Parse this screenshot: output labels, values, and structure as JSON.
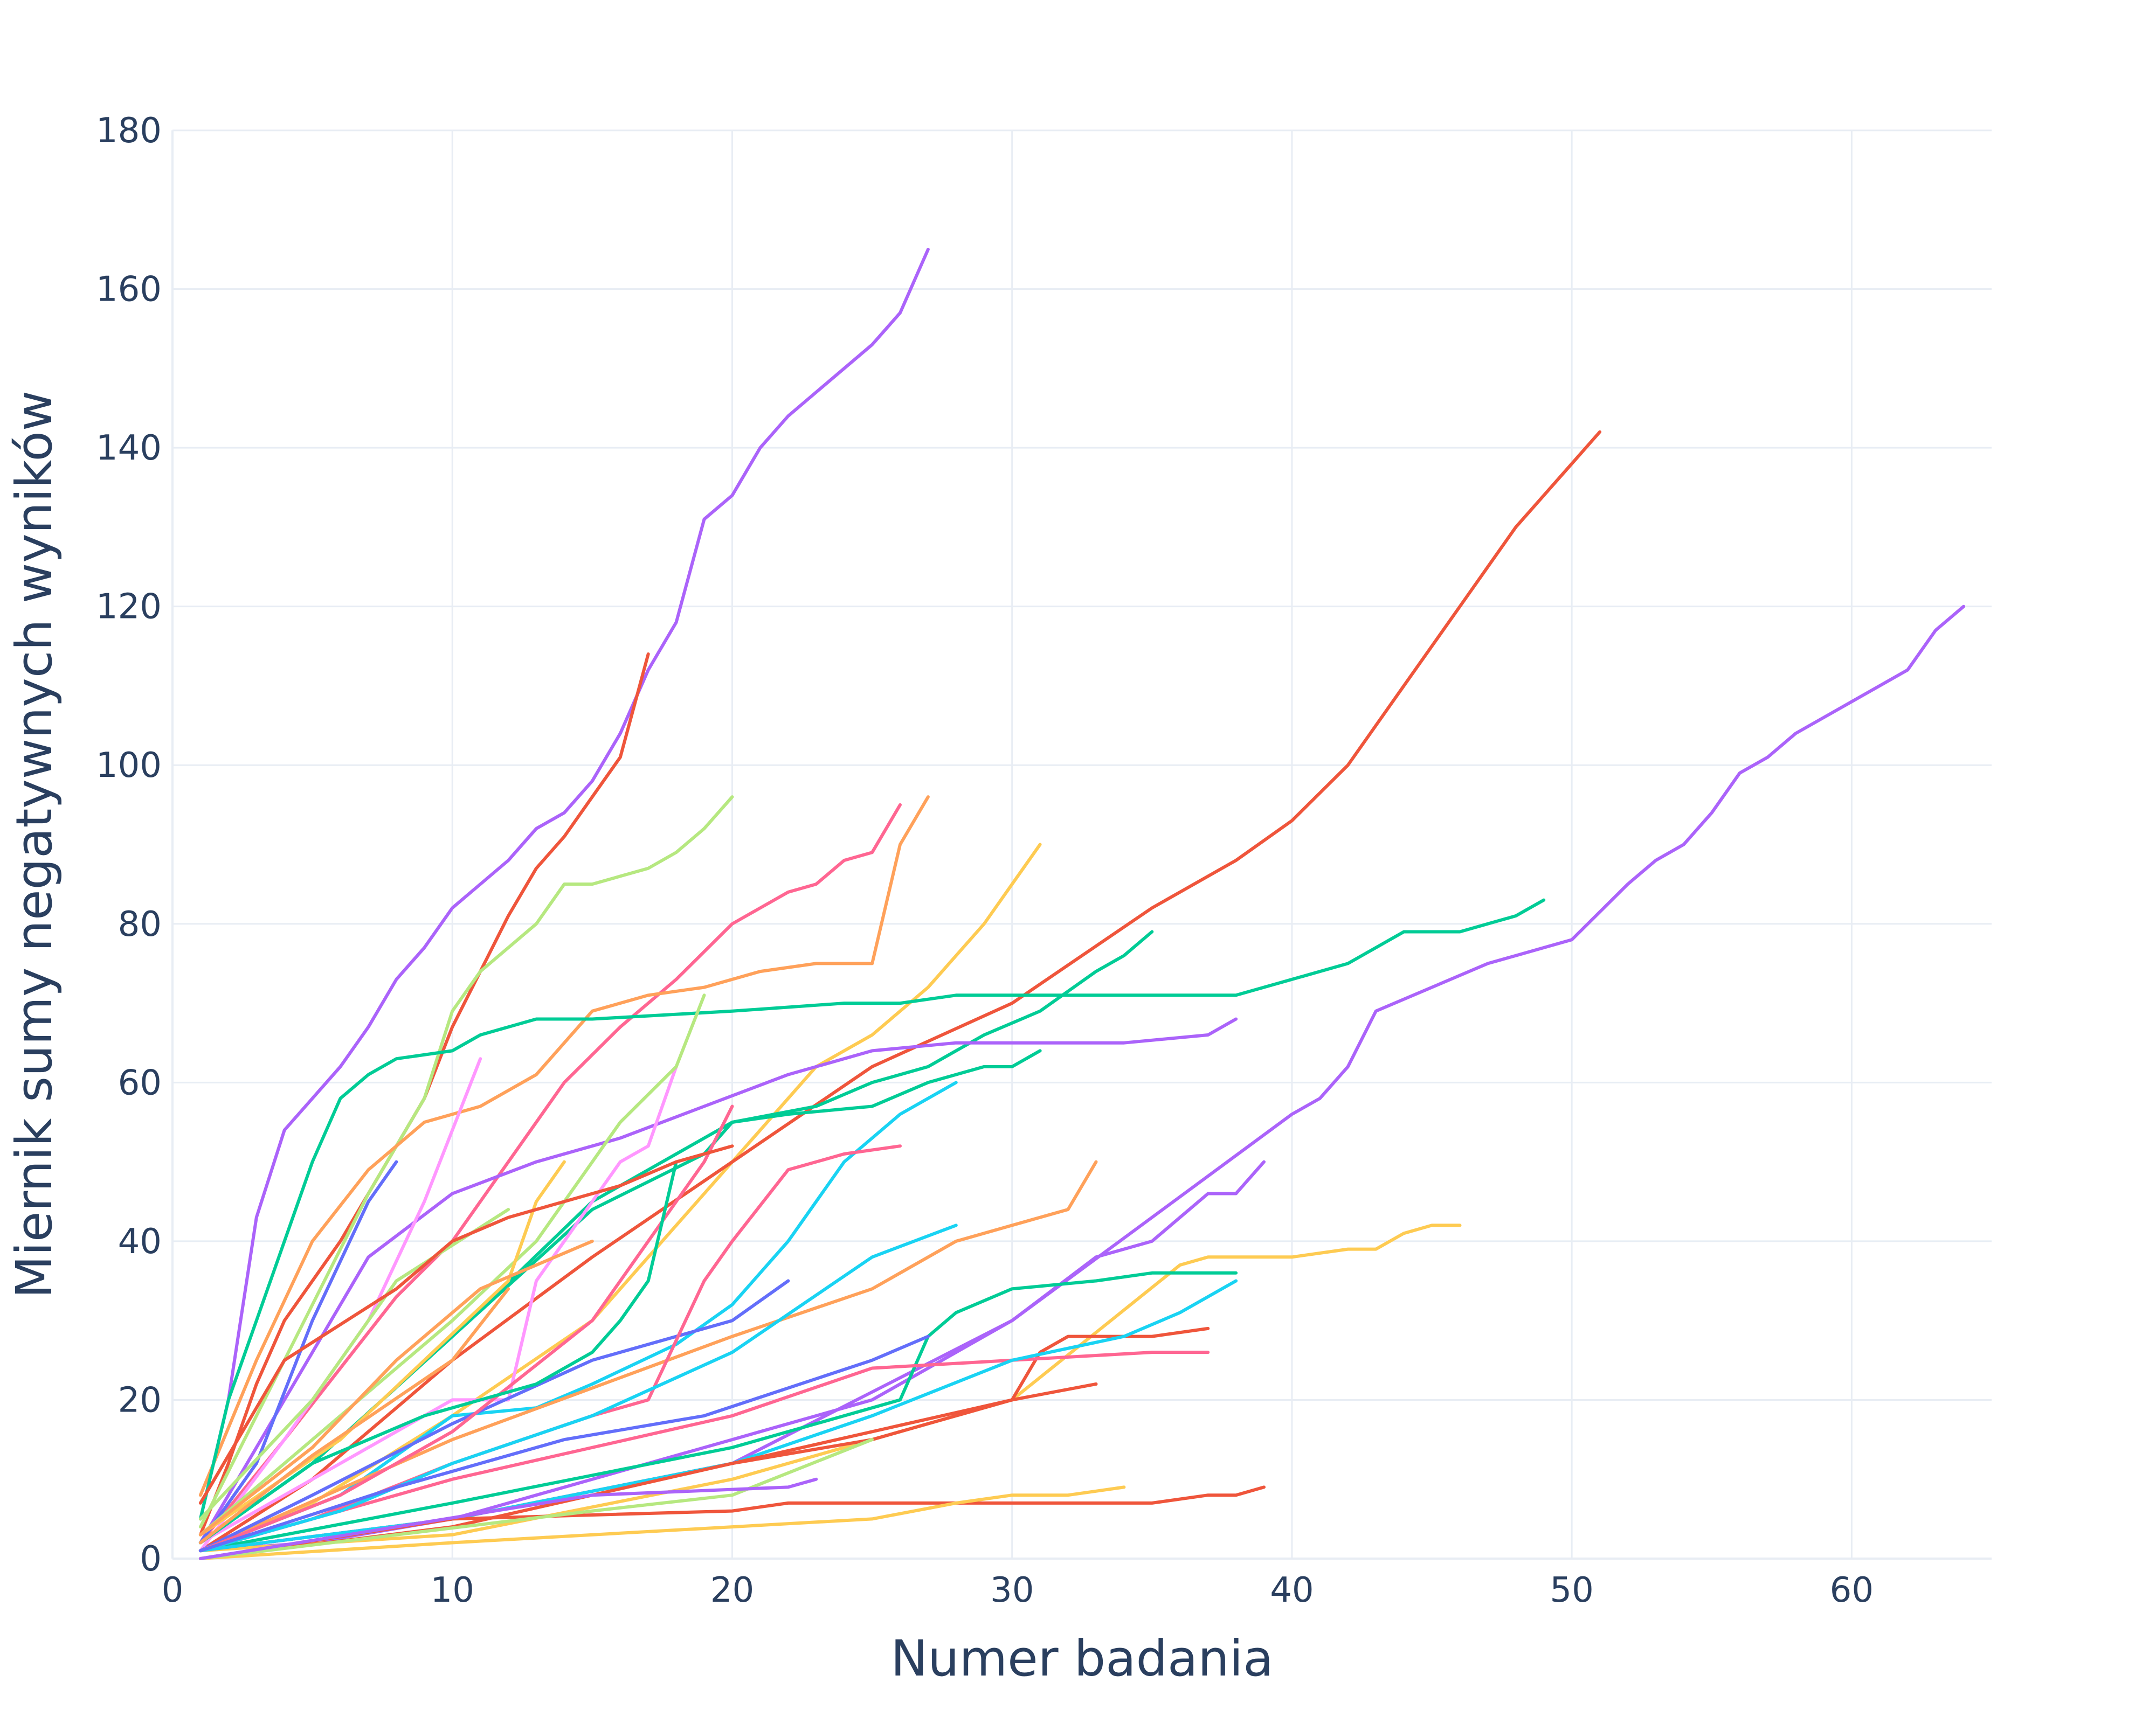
{
  "chart_data": {
    "type": "line",
    "title": "",
    "xlabel": "Numer badania",
    "ylabel": "Miernik sumy negatywnych wyników",
    "xlim": [
      0,
      65
    ],
    "ylim": [
      0,
      180
    ],
    "x_ticks": [
      0,
      10,
      20,
      30,
      40,
      50,
      60
    ],
    "y_ticks": [
      0,
      20,
      40,
      60,
      80,
      100,
      120,
      140,
      160,
      180
    ],
    "grid": true,
    "legend": "none",
    "series": [
      {
        "color": "#AB63FA",
        "x": [
          1,
          2,
          3,
          4,
          5,
          6,
          7,
          8,
          9,
          10,
          11,
          12,
          13,
          14,
          15,
          16,
          17,
          18,
          19,
          20,
          21,
          22,
          23,
          24,
          25,
          26,
          27
        ],
        "y": [
          5,
          20,
          43,
          54,
          58,
          62,
          67,
          73,
          77,
          82,
          85,
          88,
          92,
          94,
          98,
          104,
          112,
          118,
          131,
          134,
          140,
          144,
          147,
          150,
          153,
          157,
          165
        ]
      },
      {
        "color": "#EF553B",
        "x": [
          1,
          2,
          3,
          4,
          5,
          6,
          7,
          8,
          9,
          10,
          11,
          12,
          13,
          14,
          15,
          16,
          17
        ],
        "y": [
          3,
          12,
          22,
          30,
          35,
          40,
          46,
          52,
          58,
          67,
          74,
          81,
          87,
          91,
          96,
          101,
          114
        ]
      },
      {
        "color": "#B6E880",
        "x": [
          1,
          3,
          5,
          7,
          9,
          10,
          11,
          12,
          13,
          14,
          15,
          16,
          17,
          18,
          19,
          20
        ],
        "y": [
          4,
          18,
          32,
          46,
          58,
          69,
          74,
          77,
          80,
          85,
          85,
          86,
          87,
          89,
          92,
          96
        ]
      },
      {
        "color": "#FF6692",
        "x": [
          1,
          4,
          6,
          8,
          10,
          12,
          14,
          16,
          18,
          20,
          21,
          22,
          23,
          24,
          25,
          26
        ],
        "y": [
          2,
          15,
          24,
          33,
          40,
          50,
          60,
          67,
          73,
          80,
          82,
          84,
          85,
          88,
          89,
          95
        ]
      },
      {
        "color": "#FFA15A",
        "x": [
          1,
          3,
          5,
          7,
          9,
          11,
          13,
          15,
          17,
          19,
          21,
          23,
          25,
          26,
          27
        ],
        "y": [
          8,
          25,
          40,
          49,
          55,
          57,
          61,
          69,
          71,
          72,
          74,
          75,
          75,
          90,
          96
        ]
      },
      {
        "color": "#FECB52",
        "x": [
          1,
          5,
          10,
          15,
          20,
          23,
          25,
          27,
          29,
          31
        ],
        "y": [
          1,
          7,
          18,
          30,
          50,
          62,
          66,
          72,
          80,
          90
        ]
      },
      {
        "color": "#EF553B",
        "x": [
          1,
          5,
          10,
          15,
          20,
          25,
          30,
          35,
          38,
          40,
          42,
          44,
          46,
          47,
          48,
          50,
          51
        ],
        "y": [
          1,
          10,
          25,
          38,
          50,
          62,
          70,
          82,
          88,
          93,
          100,
          110,
          120,
          125,
          130,
          138,
          142
        ]
      },
      {
        "color": "#AB63FA",
        "x": [
          1,
          10,
          20,
          30,
          40,
          41,
          42,
          43,
          45,
          47,
          48,
          49,
          50,
          52,
          53,
          54,
          55,
          56,
          57,
          58,
          60,
          62,
          63,
          64
        ],
        "y": [
          1,
          5,
          12,
          30,
          56,
          58,
          62,
          69,
          72,
          75,
          76,
          77,
          78,
          85,
          88,
          90,
          94,
          99,
          101,
          104,
          108,
          112,
          117,
          120
        ]
      },
      {
        "color": "#00CC96",
        "x": [
          1,
          2,
          3,
          4,
          5,
          6,
          7,
          8,
          10,
          11,
          12,
          13,
          14,
          15,
          20,
          24,
          26,
          28,
          30,
          38,
          40,
          42,
          44,
          46,
          48,
          49
        ],
        "y": [
          5,
          20,
          30,
          40,
          50,
          58,
          61,
          63,
          64,
          66,
          67,
          68,
          68,
          68,
          69,
          70,
          70,
          71,
          71,
          71,
          73,
          75,
          79,
          79,
          81,
          83
        ]
      },
      {
        "color": "#00CC96",
        "x": [
          1,
          5,
          10,
          15,
          20,
          23,
          25,
          27,
          28,
          29,
          31,
          33,
          34,
          35
        ],
        "y": [
          2,
          12,
          28,
          45,
          55,
          57,
          60,
          62,
          64,
          66,
          69,
          74,
          76,
          79
        ]
      },
      {
        "color": "#AB63FA",
        "x": [
          1,
          4,
          7,
          10,
          13,
          16,
          19,
          22,
          25,
          28,
          31,
          34,
          37,
          38
        ],
        "y": [
          2,
          20,
          38,
          46,
          50,
          53,
          57,
          61,
          64,
          65,
          65,
          65,
          66,
          68
        ]
      },
      {
        "color": "#00CC96",
        "x": [
          1,
          5,
          10,
          15,
          19,
          20,
          22,
          25,
          27,
          29,
          30,
          31
        ],
        "y": [
          2,
          12,
          28,
          44,
          51,
          55,
          56,
          57,
          60,
          62,
          62,
          64
        ]
      },
      {
        "color": "#19D3F3",
        "x": [
          1,
          6,
          10,
          13,
          15,
          18,
          20,
          22,
          24,
          26,
          28
        ],
        "y": [
          1,
          8,
          18,
          19,
          22,
          27,
          32,
          40,
          50,
          56,
          60
        ]
      },
      {
        "color": "#FF97FF",
        "x": [
          1,
          4,
          7,
          9,
          11
        ],
        "y": [
          1,
          15,
          30,
          45,
          63
        ]
      },
      {
        "color": "#636EFA",
        "x": [
          1,
          3,
          5,
          7,
          8
        ],
        "y": [
          2,
          12,
          30,
          45,
          50
        ]
      },
      {
        "color": "#AB63FA",
        "x": [
          1,
          5,
          10,
          15,
          20,
          25,
          30,
          33,
          35,
          36,
          37,
          38,
          39
        ],
        "y": [
          1,
          2,
          5,
          10,
          15,
          20,
          30,
          38,
          40,
          43,
          46,
          46,
          50
        ]
      },
      {
        "color": "#FECB52",
        "x": [
          1,
          10,
          20,
          30,
          36,
          37,
          40,
          42,
          43,
          44,
          45,
          46
        ],
        "y": [
          1,
          3,
          10,
          20,
          37,
          38,
          38,
          39,
          39,
          41,
          42,
          42
        ]
      },
      {
        "color": "#00CC96",
        "x": [
          1,
          10,
          20,
          26,
          27,
          28,
          30,
          33,
          35,
          36,
          38
        ],
        "y": [
          1,
          7,
          14,
          20,
          28,
          31,
          34,
          35,
          36,
          36,
          36
        ]
      },
      {
        "color": "#EF553B",
        "x": [
          1,
          10,
          20,
          25,
          30,
          31,
          32,
          35,
          37
        ],
        "y": [
          1,
          5,
          12,
          15,
          20,
          26,
          28,
          28,
          29
        ]
      },
      {
        "color": "#FF6692",
        "x": [
          1,
          10,
          20,
          25,
          30,
          35,
          37
        ],
        "y": [
          1,
          10,
          18,
          24,
          25,
          26,
          26
        ]
      },
      {
        "color": "#19D3F3",
        "x": [
          1,
          10,
          20,
          25,
          30,
          34,
          36,
          38
        ],
        "y": [
          1,
          5,
          12,
          18,
          25,
          28,
          31,
          35
        ]
      },
      {
        "color": "#FFA15A",
        "x": [
          1,
          10,
          20,
          25,
          28,
          30,
          32,
          33
        ],
        "y": [
          1,
          15,
          28,
          34,
          40,
          42,
          44,
          50
        ]
      },
      {
        "color": "#EF553B",
        "x": [
          1,
          10,
          20,
          30,
          33
        ],
        "y": [
          0,
          4,
          12,
          20,
          22
        ]
      },
      {
        "color": "#EF553B",
        "x": [
          1,
          10,
          20,
          22,
          30,
          35,
          37,
          38,
          39
        ],
        "y": [
          0,
          5,
          6,
          7,
          7,
          7,
          8,
          8,
          9
        ]
      },
      {
        "color": "#FECB52",
        "x": [
          1,
          10,
          20,
          25,
          28,
          30,
          32,
          34
        ],
        "y": [
          0,
          2,
          4,
          5,
          7,
          8,
          8,
          9
        ]
      },
      {
        "color": "#FF97FF",
        "x": [
          1,
          10,
          12,
          13,
          14,
          15,
          16,
          17,
          18
        ],
        "y": [
          2,
          20,
          20,
          35,
          40,
          45,
          50,
          52,
          62
        ]
      },
      {
        "color": "#B6E880",
        "x": [
          1,
          5,
          10,
          13,
          16,
          18,
          19
        ],
        "y": [
          3,
          15,
          30,
          40,
          55,
          62,
          71
        ]
      },
      {
        "color": "#636EFA",
        "x": [
          1,
          5,
          10,
          15,
          20,
          22
        ],
        "y": [
          1,
          8,
          17,
          25,
          30,
          35
        ]
      },
      {
        "color": "#FECB52",
        "x": [
          1,
          6,
          9,
          12,
          13,
          14
        ],
        "y": [
          3,
          15,
          25,
          35,
          45,
          50
        ]
      },
      {
        "color": "#FF6692",
        "x": [
          1,
          6,
          10,
          15,
          17,
          19,
          20
        ],
        "y": [
          1,
          8,
          16,
          30,
          40,
          50,
          57
        ]
      },
      {
        "color": "#00CC96",
        "x": [
          1,
          5,
          9,
          13,
          15,
          16,
          17,
          18
        ],
        "y": [
          2,
          12,
          18,
          22,
          26,
          30,
          35,
          50
        ]
      },
      {
        "color": "#B6E880",
        "x": [
          1,
          5,
          8,
          12
        ],
        "y": [
          5,
          20,
          35,
          44
        ]
      },
      {
        "color": "#EF553B",
        "x": [
          1,
          4,
          8,
          10,
          12,
          14,
          16,
          18,
          20
        ],
        "y": [
          7,
          25,
          34,
          40,
          43,
          45,
          47,
          50,
          52
        ]
      },
      {
        "color": "#FF6692",
        "x": [
          1,
          5,
          10,
          15,
          17,
          19,
          20,
          22,
          24,
          26
        ],
        "y": [
          1,
          5,
          12,
          18,
          20,
          35,
          40,
          49,
          51,
          52
        ]
      },
      {
        "color": "#19D3F3",
        "x": [
          1,
          6,
          10,
          15,
          20,
          25,
          28
        ],
        "y": [
          1,
          6,
          12,
          18,
          26,
          38,
          42
        ]
      },
      {
        "color": "#636EFA",
        "x": [
          1,
          8,
          14,
          19,
          25,
          27
        ],
        "y": [
          1,
          9,
          15,
          18,
          25,
          28
        ]
      },
      {
        "color": "#FFA15A",
        "x": [
          1,
          5,
          10,
          12
        ],
        "y": [
          2,
          13,
          25,
          34
        ]
      },
      {
        "color": "#B6E880",
        "x": [
          1,
          8,
          15,
          20,
          25
        ],
        "y": [
          0,
          3,
          6,
          8,
          15
        ]
      },
      {
        "color": "#AB63FA",
        "x": [
          1,
          8,
          15,
          22,
          23
        ],
        "y": [
          0,
          4,
          8,
          9,
          10
        ]
      },
      {
        "color": "#FFA15A",
        "x": [
          1,
          5,
          8,
          11,
          15
        ],
        "y": [
          3,
          14,
          25,
          34,
          40
        ]
      }
    ]
  }
}
